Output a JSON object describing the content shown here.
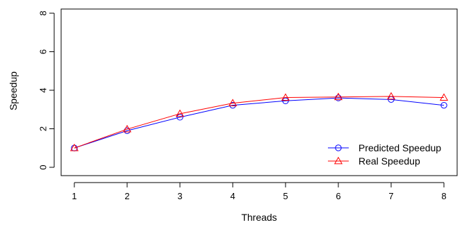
{
  "chart_data": {
    "type": "line",
    "title": "",
    "xlabel": "Threads",
    "ylabel": "Speedup",
    "x": [
      1,
      2,
      3,
      4,
      5,
      6,
      7,
      8
    ],
    "xlim": [
      1,
      8
    ],
    "ylim": [
      0,
      8
    ],
    "x_ticks": [
      1,
      2,
      3,
      4,
      5,
      6,
      7,
      8
    ],
    "y_ticks": [
      0,
      2,
      4,
      6,
      8
    ],
    "grid": false,
    "legend_position": "bottom-right",
    "series": [
      {
        "name": "Predicted Speedup",
        "color": "#0000ff",
        "marker": "circle",
        "values": [
          1.0,
          1.9,
          2.6,
          3.22,
          3.45,
          3.6,
          3.52,
          3.22
        ]
      },
      {
        "name": "Real Speedup",
        "color": "#ff0000",
        "marker": "triangle",
        "values": [
          1.0,
          1.98,
          2.78,
          3.33,
          3.62,
          3.65,
          3.68,
          3.62
        ]
      }
    ]
  }
}
